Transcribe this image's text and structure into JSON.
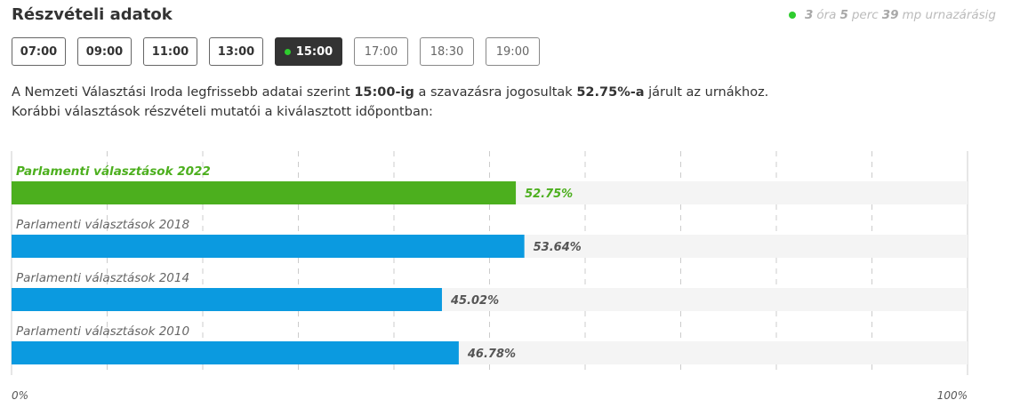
{
  "header": {
    "title": "Részvételi adatok",
    "countdown": {
      "hours": "3",
      "hours_unit": "óra",
      "minutes": "5",
      "minutes_unit": "perc",
      "seconds": "39",
      "seconds_unit": "mp urnazárásig"
    }
  },
  "tabs": [
    {
      "label": "07:00",
      "state": "past"
    },
    {
      "label": "09:00",
      "state": "past"
    },
    {
      "label": "11:00",
      "state": "past"
    },
    {
      "label": "13:00",
      "state": "past"
    },
    {
      "label": "15:00",
      "state": "active"
    },
    {
      "label": "17:00",
      "state": "future"
    },
    {
      "label": "18:30",
      "state": "future"
    },
    {
      "label": "19:00",
      "state": "future"
    }
  ],
  "description": {
    "line1_before": "A Nemzeti Választási Iroda legfrissebb adatai szerint ",
    "line1_time": "15:00-ig",
    "line1_middle": " a szavazásra jogosultak ",
    "line1_percent": "52.75%-a",
    "line1_after": " járult az urnákhoz.",
    "line2": "Korábbi választások részvételi mutatói a kiválasztott időpontban:"
  },
  "colors": {
    "current": "#4caf1e",
    "previous": "#0b9ae0",
    "track": "#f4f4f4",
    "grid": "#cccccc",
    "live_dot": "#2ecc2e"
  },
  "chart_data": {
    "type": "bar",
    "orientation": "horizontal",
    "categories": [
      "Parlamenti választások 2022",
      "Parlamenti választások 2018",
      "Parlamenti választások 2014",
      "Parlamenti választások 2010"
    ],
    "values": [
      52.75,
      53.64,
      45.02,
      46.78
    ],
    "value_labels": [
      "52.75%",
      "53.64%",
      "45.02%",
      "46.78%"
    ],
    "highlight_index": 0,
    "xlim": [
      0,
      100
    ],
    "x_tick_labels": [
      "0%",
      "100%"
    ],
    "grid_divisions": 10,
    "grid": true
  }
}
